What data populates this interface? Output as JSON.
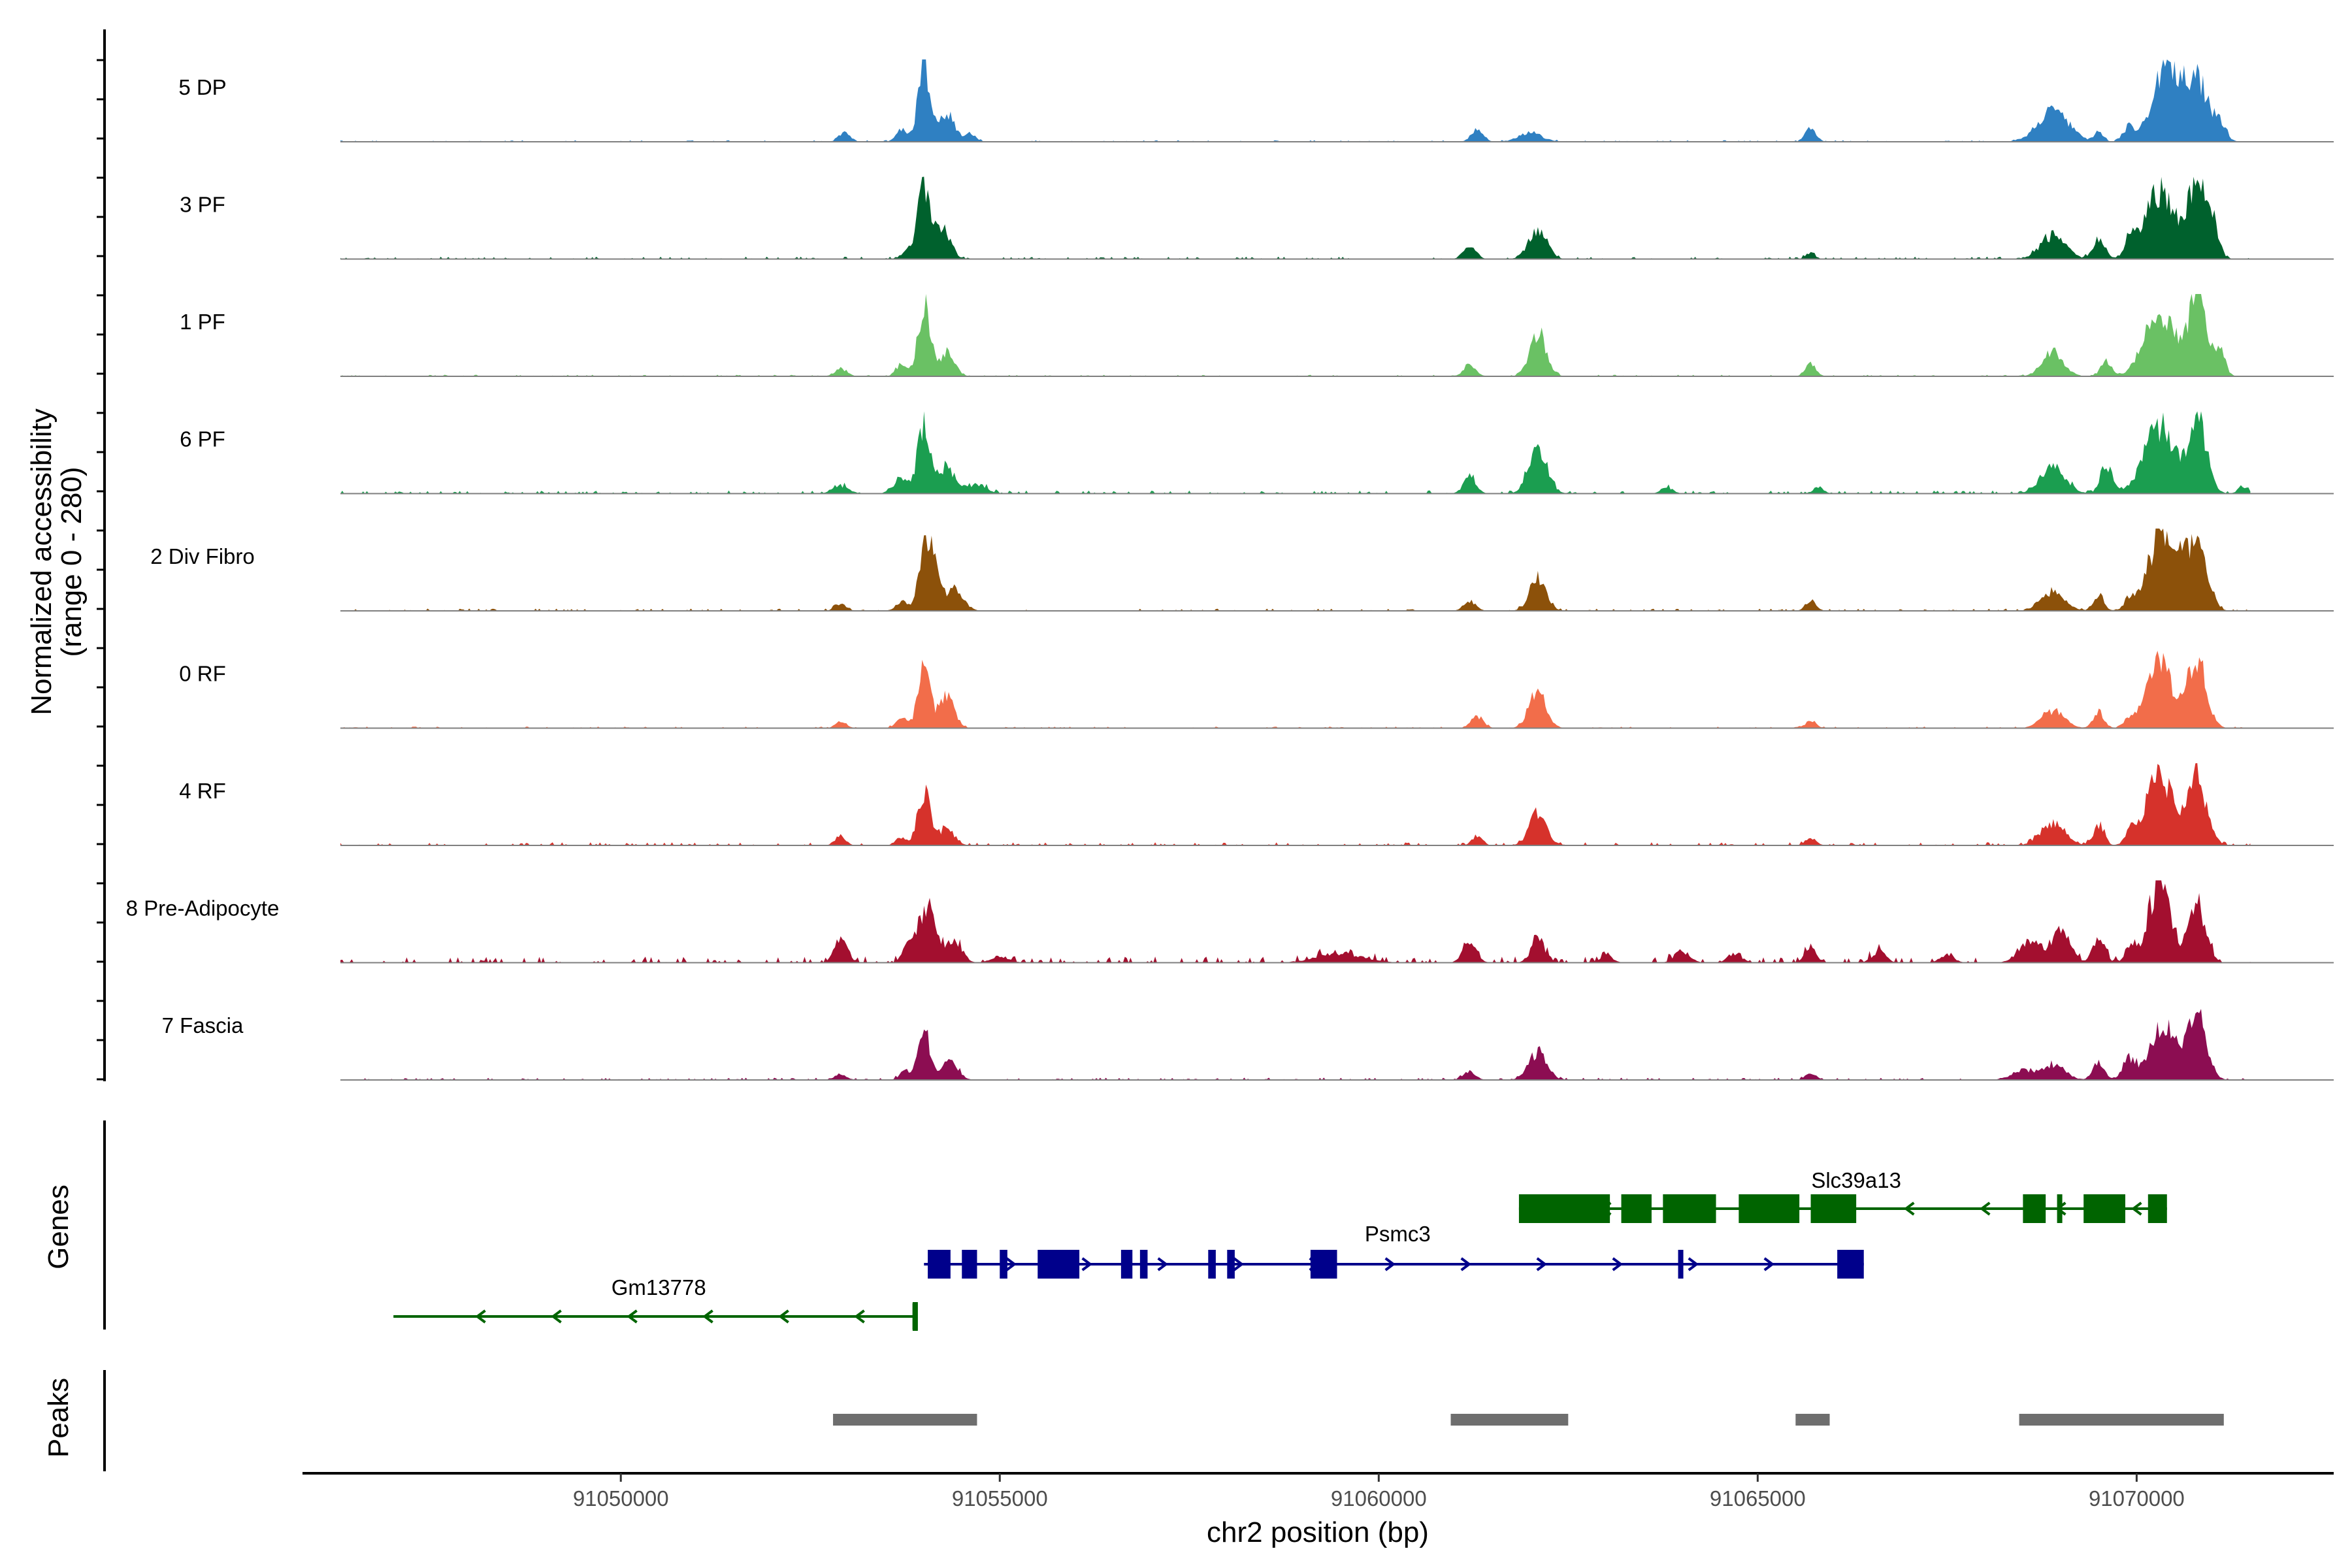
{
  "chart_data": {
    "type": "area",
    "title": "",
    "ylabel": "Normalized accessibility",
    "ylabel_range": "(range 0 - 280)",
    "ylim": [
      0,
      280
    ],
    "xlabel": "chr2 position (bp)",
    "xlim": [
      91045800,
      91072600
    ],
    "xticks": [
      91050000,
      91055000,
      91060000,
      91065000,
      91070000
    ],
    "tracks": [
      {
        "name": "5 DP",
        "color": "#2f80c2",
        "peaks": [
          [
            91052950,
            0.12,
            70
          ],
          [
            91053700,
            0.15,
            70
          ],
          [
            91054000,
            1.0,
            80
          ],
          [
            91054300,
            0.35,
            100
          ],
          [
            91054600,
            0.1,
            80
          ],
          [
            91061300,
            0.15,
            80
          ],
          [
            91062000,
            0.12,
            150
          ],
          [
            91065700,
            0.18,
            70
          ],
          [
            91068900,
            0.4,
            200
          ],
          [
            91069500,
            0.12,
            60
          ],
          [
            91069900,
            0.18,
            80
          ],
          [
            91070400,
            1.0,
            180
          ],
          [
            91070800,
            0.75,
            150
          ],
          [
            91071100,
            0.2,
            80
          ]
        ],
        "noise": 0.02
      },
      {
        "name": "3 PF",
        "color": "#00612d",
        "peaks": [
          [
            91053800,
            0.1,
            90
          ],
          [
            91054000,
            0.9,
            80
          ],
          [
            91054250,
            0.4,
            100
          ],
          [
            91061200,
            0.18,
            80
          ],
          [
            91062100,
            0.38,
            120
          ],
          [
            91065700,
            0.08,
            60
          ],
          [
            91068900,
            0.3,
            160
          ],
          [
            91069500,
            0.25,
            80
          ],
          [
            91069900,
            0.2,
            60
          ],
          [
            91070300,
            0.85,
            200
          ],
          [
            91070800,
            0.95,
            120
          ],
          [
            91071000,
            0.4,
            80
          ]
        ],
        "noise": 0.03
      },
      {
        "name": "1 PF",
        "color": "#6ac164",
        "peaks": [
          [
            91052900,
            0.1,
            80
          ],
          [
            91053700,
            0.15,
            70
          ],
          [
            91054000,
            0.9,
            80
          ],
          [
            91054300,
            0.3,
            100
          ],
          [
            91061200,
            0.15,
            80
          ],
          [
            91062100,
            0.55,
            110
          ],
          [
            91065700,
            0.15,
            70
          ],
          [
            91068900,
            0.3,
            140
          ],
          [
            91069600,
            0.2,
            70
          ],
          [
            91070300,
            0.8,
            200
          ],
          [
            91070800,
            1.0,
            120
          ],
          [
            91071100,
            0.3,
            70
          ]
        ],
        "noise": 0.02
      },
      {
        "name": "6 PF",
        "color": "#1b9e50",
        "peaks": [
          [
            91052900,
            0.1,
            100
          ],
          [
            91053700,
            0.2,
            100
          ],
          [
            91054000,
            0.9,
            80
          ],
          [
            91054300,
            0.35,
            100
          ],
          [
            91054700,
            0.12,
            120
          ],
          [
            91061200,
            0.22,
            80
          ],
          [
            91062100,
            0.6,
            120
          ],
          [
            91063800,
            0.08,
            80
          ],
          [
            91065800,
            0.08,
            70
          ],
          [
            91068900,
            0.35,
            160
          ],
          [
            91069600,
            0.35,
            80
          ],
          [
            91070300,
            0.85,
            200
          ],
          [
            91070800,
            0.95,
            120
          ],
          [
            91071400,
            0.1,
            60
          ]
        ],
        "noise": 0.04
      },
      {
        "name": "2 Div Fibro",
        "color": "#8c510a",
        "peaks": [
          [
            91052900,
            0.08,
            80
          ],
          [
            91053700,
            0.12,
            70
          ],
          [
            91054050,
            0.95,
            100
          ],
          [
            91054400,
            0.25,
            120
          ],
          [
            91061200,
            0.12,
            80
          ],
          [
            91062100,
            0.4,
            110
          ],
          [
            91065700,
            0.12,
            70
          ],
          [
            91068900,
            0.25,
            150
          ],
          [
            91069500,
            0.2,
            70
          ],
          [
            91069900,
            0.12,
            60
          ],
          [
            91070350,
            1.0,
            200
          ],
          [
            91070800,
            0.8,
            130
          ]
        ],
        "noise": 0.03
      },
      {
        "name": "0 RF",
        "color": "#f26d4a",
        "peaks": [
          [
            91052900,
            0.08,
            70
          ],
          [
            91053700,
            0.12,
            70
          ],
          [
            91054000,
            0.75,
            80
          ],
          [
            91054300,
            0.4,
            100
          ],
          [
            91061300,
            0.15,
            80
          ],
          [
            91062100,
            0.5,
            110
          ],
          [
            91065700,
            0.1,
            70
          ],
          [
            91068900,
            0.22,
            150
          ],
          [
            91069500,
            0.2,
            70
          ],
          [
            91069900,
            0.1,
            60
          ],
          [
            91070300,
            0.8,
            180
          ],
          [
            91070800,
            0.9,
            120
          ]
        ],
        "noise": 0.02
      },
      {
        "name": "4 RF",
        "color": "#d6322b",
        "peaks": [
          [
            91052900,
            0.12,
            70
          ],
          [
            91053700,
            0.1,
            70
          ],
          [
            91054000,
            0.7,
            80
          ],
          [
            91054300,
            0.22,
            100
          ],
          [
            91061300,
            0.12,
            70
          ],
          [
            91062100,
            0.4,
            110
          ],
          [
            91065700,
            0.1,
            70
          ],
          [
            91068900,
            0.28,
            160
          ],
          [
            91069500,
            0.25,
            70
          ],
          [
            91069900,
            0.15,
            60
          ],
          [
            91070300,
            0.9,
            180
          ],
          [
            91070800,
            0.85,
            120
          ]
        ],
        "noise": 0.04
      },
      {
        "name": "8 Pre-Adipocyte",
        "color": "#a30f2f",
        "peaks": [
          [
            91052900,
            0.35,
            80
          ],
          [
            91053800,
            0.2,
            80
          ],
          [
            91054050,
            0.7,
            110
          ],
          [
            91054400,
            0.3,
            100
          ],
          [
            91055000,
            0.08,
            120
          ],
          [
            91059500,
            0.12,
            300
          ],
          [
            91061200,
            0.25,
            90
          ],
          [
            91062100,
            0.3,
            90
          ],
          [
            91063000,
            0.1,
            80
          ],
          [
            91064000,
            0.15,
            100
          ],
          [
            91064700,
            0.12,
            90
          ],
          [
            91065700,
            0.18,
            80
          ],
          [
            91066600,
            0.15,
            90
          ],
          [
            91067500,
            0.1,
            90
          ],
          [
            91068600,
            0.25,
            150
          ],
          [
            91069000,
            0.4,
            120
          ],
          [
            91069500,
            0.3,
            80
          ],
          [
            91069900,
            0.2,
            60
          ],
          [
            91070300,
            1.0,
            150
          ],
          [
            91070800,
            0.75,
            110
          ]
        ],
        "noise": 0.08
      },
      {
        "name": "7 Fascia",
        "color": "#8c0d52",
        "peaks": [
          [
            91052900,
            0.08,
            80
          ],
          [
            91053750,
            0.12,
            70
          ],
          [
            91054000,
            0.65,
            80
          ],
          [
            91054350,
            0.25,
            100
          ],
          [
            91061200,
            0.1,
            80
          ],
          [
            91062100,
            0.35,
            120
          ],
          [
            91065700,
            0.08,
            70
          ],
          [
            91068500,
            0.12,
            150
          ],
          [
            91068900,
            0.2,
            150
          ],
          [
            91069500,
            0.2,
            80
          ],
          [
            91069900,
            0.25,
            80
          ],
          [
            91070350,
            0.7,
            180
          ],
          [
            91070800,
            0.85,
            120
          ]
        ],
        "noise": 0.03
      }
    ],
    "genes": [
      {
        "name": "Slc39a13",
        "strand": "-",
        "color": "#006400",
        "start": 91061850,
        "end": 91070400,
        "exons": [
          [
            91061850,
            91063050
          ],
          [
            91063200,
            91063600
          ],
          [
            91063750,
            91064450
          ],
          [
            91064750,
            91065550
          ],
          [
            91065700,
            91066300
          ],
          [
            91068500,
            91068800
          ],
          [
            91068950,
            91069000
          ],
          [
            91069300,
            91069850
          ],
          [
            91070150,
            91070400
          ]
        ]
      },
      {
        "name": "Psmc3",
        "strand": "+",
        "color": "#00008b",
        "start": 91054000,
        "end": 91066400,
        "exons": [
          [
            91054050,
            91054350
          ],
          [
            91054500,
            91054700
          ],
          [
            91055000,
            91055100
          ],
          [
            91055500,
            91056050
          ],
          [
            91056600,
            91056750
          ],
          [
            91056850,
            91056950
          ],
          [
            91057750,
            91057850
          ],
          [
            91058000,
            91058100
          ],
          [
            91059100,
            91059450
          ],
          [
            91063950,
            91064000
          ],
          [
            91066050,
            91066400
          ]
        ]
      },
      {
        "name": "Gm13778",
        "strand": "-",
        "color": "#006400",
        "start": 91047000,
        "end": 91053900,
        "exons": [
          [
            91053850,
            91053900
          ]
        ]
      }
    ],
    "peak_regions": [
      [
        91052800,
        91054700
      ],
      [
        91060950,
        91062500
      ],
      [
        91065500,
        91065950
      ],
      [
        91068450,
        91071150
      ]
    ],
    "panels": [
      "Genes",
      "Peaks"
    ]
  }
}
